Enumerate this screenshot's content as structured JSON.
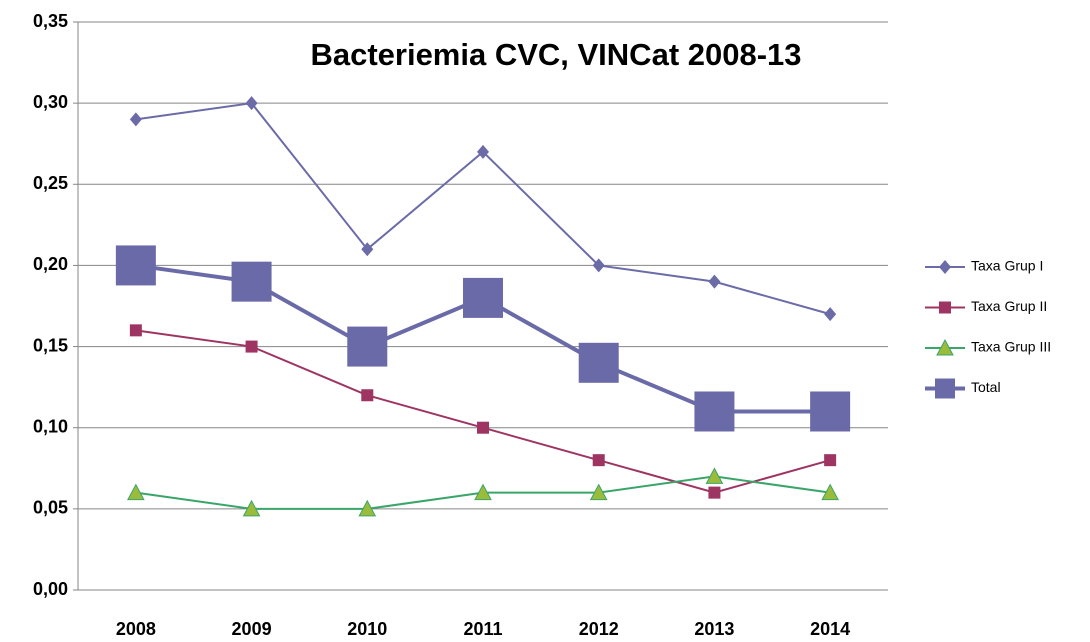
{
  "chart_data": {
    "type": "line",
    "title": "Bacteriemia CVC, VINCat 2008-13",
    "categories": [
      "2008",
      "2009",
      "2010",
      "2011",
      "2012",
      "2013",
      "2014"
    ],
    "series": [
      {
        "name": "Taxa Grup I",
        "color": "#6b6ba8",
        "marker": "diamond",
        "values": [
          0.29,
          0.3,
          0.21,
          0.27,
          0.2,
          0.19,
          0.17
        ]
      },
      {
        "name": "Taxa Grup II",
        "color": "#9e3462",
        "marker": "square",
        "values": [
          0.16,
          0.15,
          0.12,
          0.1,
          0.08,
          0.06,
          0.08
        ]
      },
      {
        "name": "Taxa Grup III",
        "color": "#3aa56a",
        "marker": "triangle",
        "marker_color": "#9bbb3b",
        "values": [
          0.06,
          0.05,
          0.05,
          0.06,
          0.06,
          0.07,
          0.06
        ]
      },
      {
        "name": "Total",
        "color": "#6a6aa8",
        "marker": "big-square",
        "values": [
          0.2,
          0.19,
          0.15,
          0.18,
          0.14,
          0.11,
          0.11
        ]
      }
    ],
    "ylim": [
      0,
      0.35
    ],
    "yticks": [
      {
        "value": 0,
        "label": "0,00"
      },
      {
        "value": 0.05,
        "label": "0,05"
      },
      {
        "value": 0.1,
        "label": "0,10"
      },
      {
        "value": 0.15,
        "label": "0,15"
      },
      {
        "value": 0.2,
        "label": "0,20"
      },
      {
        "value": 0.25,
        "label": "0,25"
      },
      {
        "value": 0.3,
        "label": "0,30"
      },
      {
        "value": 0.35,
        "label": "0,35"
      }
    ],
    "grid": true,
    "legend": "right"
  }
}
